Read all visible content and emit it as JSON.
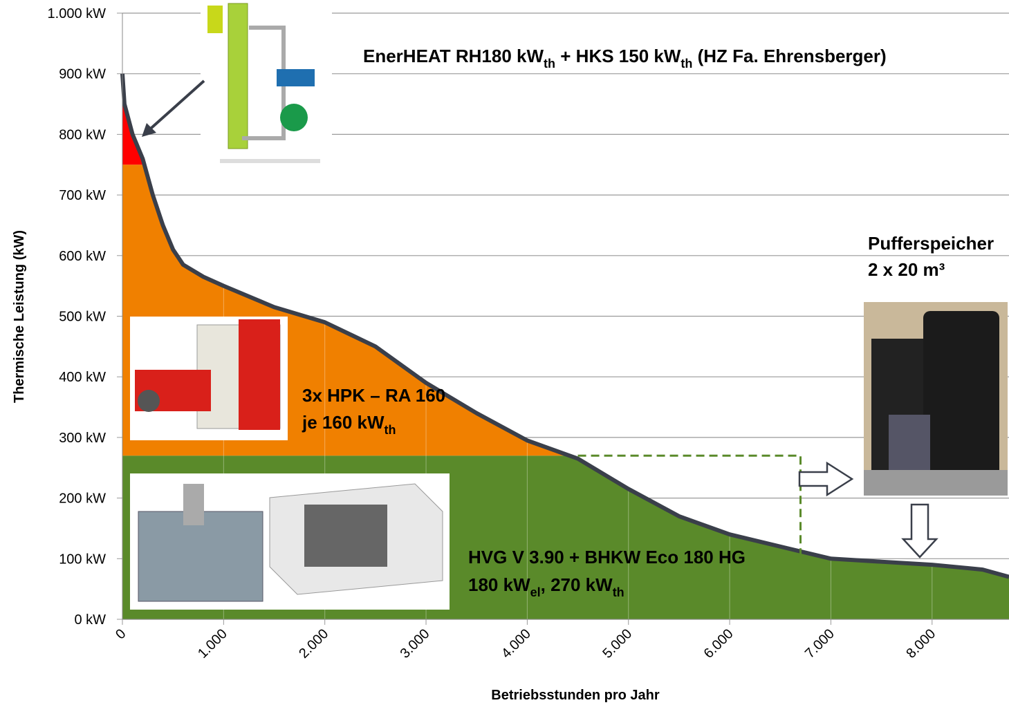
{
  "chart_data": {
    "type": "area",
    "xlabel": "Betriebsstunden pro Jahr",
    "ylabel": "Thermische Leistung (kW)",
    "x": [
      0,
      20,
      100,
      200,
      300,
      400,
      500,
      600,
      800,
      1000,
      1500,
      2000,
      2500,
      3000,
      3500,
      4000,
      4500,
      5000,
      5500,
      6000,
      6500,
      7000,
      7500,
      8000,
      8500,
      8760
    ],
    "values": [
      900,
      850,
      800,
      760,
      700,
      650,
      610,
      585,
      565,
      550,
      515,
      490,
      450,
      390,
      340,
      295,
      265,
      215,
      170,
      140,
      120,
      100,
      95,
      90,
      82,
      70
    ],
    "line_color": "#3a3f4a",
    "levels": [
      270,
      750
    ],
    "band_colors": [
      "#5a8a2a",
      "#f08000",
      "#ff0000"
    ],
    "buffer_line": {
      "x": [
        4500,
        6700,
        6700
      ],
      "y": [
        270,
        270,
        100
      ],
      "color": "#5a8a2a"
    },
    "xlim": [
      0,
      8760
    ],
    "ylim": [
      0,
      1000
    ],
    "xticks": [
      0,
      {
        "value": 1000,
        "label": "1.000"
      },
      {
        "value": 2000,
        "label": "2.000"
      },
      {
        "value": 3000,
        "label": "3.000"
      },
      {
        "value": 4000,
        "label": "4.000"
      },
      {
        "value": 5000,
        "label": "5.000"
      },
      {
        "value": 6000,
        "label": "6.000"
      },
      {
        "value": 7000,
        "label": "7.000"
      },
      {
        "value": 8000,
        "label": "8.000"
      }
    ],
    "yticks": [
      {
        "value": 0,
        "label": "0 kW"
      },
      {
        "value": 100,
        "label": "100 kW"
      },
      {
        "value": 200,
        "label": "200 kW"
      },
      {
        "value": 300,
        "label": "300 kW"
      },
      {
        "value": 400,
        "label": "400 kW"
      },
      {
        "value": 500,
        "label": "500 kW"
      },
      {
        "value": 600,
        "label": "600 kW"
      },
      {
        "value": 700,
        "label": "700 kW"
      },
      {
        "value": 800,
        "label": "800 kW"
      },
      {
        "value": 900,
        "label": "900 kW"
      },
      {
        "value": 1000,
        "label": "1.000 kW"
      }
    ],
    "grid": true,
    "annotations": [
      {
        "lines": [
          [
            "EnerHEAT RH180 kW",
            "th",
            " + HKS 150 kW",
            "th",
            " (HZ Fa. Ehrensberger)"
          ]
        ]
      },
      {
        "lines": [
          [
            "3x HPK – RA 160"
          ],
          [
            "je 160 kW",
            "th"
          ]
        ]
      },
      {
        "lines": [
          [
            "HVG V 3.90 + BHKW Eco 180 HG"
          ],
          [
            "180 kW",
            "el",
            ", 270 kW",
            "th"
          ]
        ]
      },
      {
        "lines": [
          [
            "Pufferspeicher"
          ],
          [
            "2 x 20 m³"
          ]
        ]
      }
    ]
  }
}
